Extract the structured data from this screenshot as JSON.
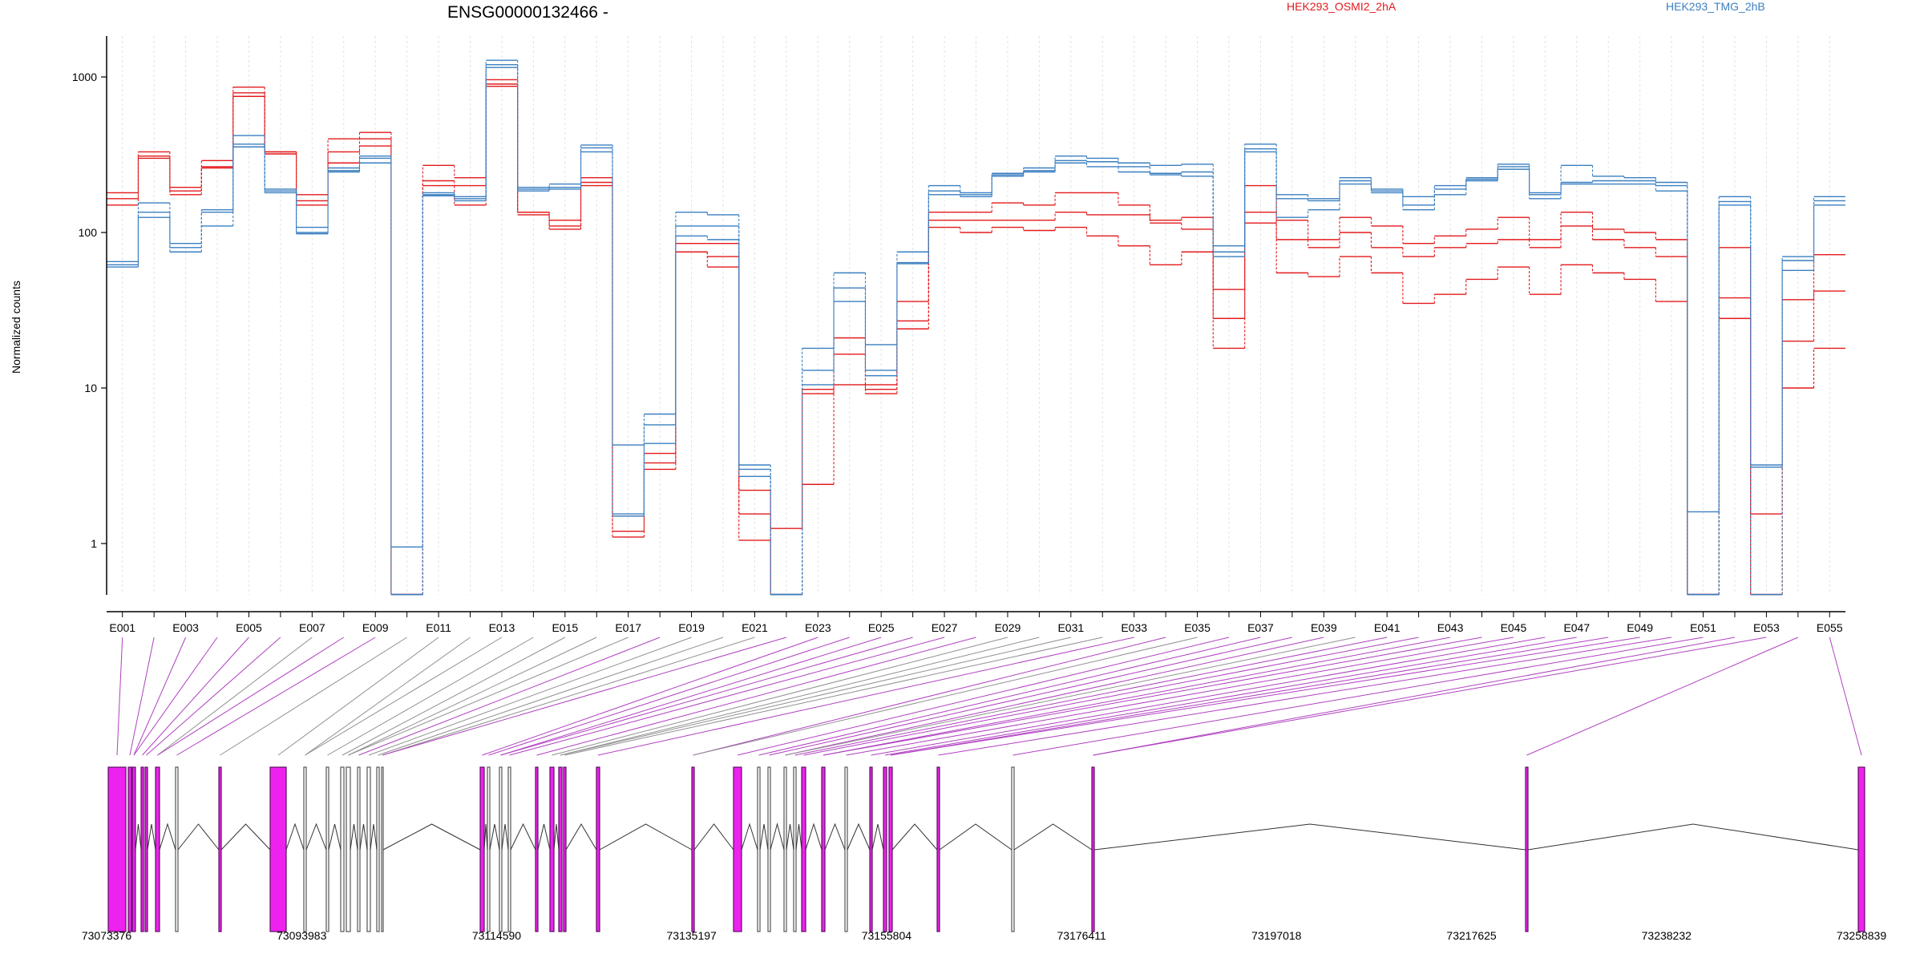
{
  "chart_data": {
    "type": "line",
    "title": "ENSG00000132466 -",
    "xlabel": "",
    "ylabel": "Normalized counts",
    "yscale": "log",
    "ylim": [
      0.45,
      1800
    ],
    "yticks": [
      1,
      10,
      100,
      1000
    ],
    "ytick_labels": [
      "1",
      "10",
      "100",
      "1000"
    ],
    "grid": "vertical dashed at each exon",
    "legend_placement": "top",
    "colors": {
      "HEK293_OSMI2_2hA": "#e31a1c",
      "HEK293_TMG_2hB": "#3a7fc1",
      "exon_highlight": "#ee22ee",
      "exon_plain": "#555555",
      "connector_highlight": "#b040c0",
      "connector_plain": "#909090"
    },
    "categories": [
      "E001",
      "E002",
      "E003",
      "E004",
      "E005",
      "E006",
      "E007",
      "E008",
      "E009",
      "E010",
      "E011",
      "E012",
      "E013",
      "E014",
      "E015",
      "E016",
      "E017",
      "E018",
      "E019",
      "E020",
      "E021",
      "E022",
      "E023",
      "E024",
      "E025",
      "E026",
      "E027",
      "E028",
      "E029",
      "E030",
      "E031",
      "E032",
      "E033",
      "E034",
      "E035",
      "E036",
      "E037",
      "E038",
      "E039",
      "E040",
      "E041",
      "E042",
      "E043",
      "E044",
      "E045",
      "E046",
      "E047",
      "E048",
      "E049",
      "E050",
      "E051",
      "E052",
      "E053",
      "E054",
      "E055"
    ],
    "tick_labels": [
      "E001",
      "E003",
      "E005",
      "E007",
      "E009",
      "E011",
      "E013",
      "E015",
      "E017",
      "E019",
      "E021",
      "E023",
      "E025",
      "E027",
      "E029",
      "E031",
      "E033",
      "E035",
      "E037",
      "E039",
      "E041",
      "E043",
      "E045",
      "E047",
      "E049",
      "E051",
      "E053",
      "E055"
    ],
    "series": [
      {
        "name": "HEK293_OSMI2_2hA",
        "color": "#e31a1c",
        "values": [
          180,
          330,
          195,
          290,
          860,
          330,
          175,
          400,
          440,
          0.47,
          270,
          225,
          960,
          135,
          120,
          225,
          1.5,
          3.8,
          75,
          70,
          2.2,
          1.25,
          9.8,
          21,
          10.5,
          36,
          135,
          135,
          155,
          150,
          180,
          180,
          150,
          120,
          125,
          43,
          200,
          120,
          90,
          125,
          110,
          85,
          95,
          105,
          125,
          90,
          135,
          105,
          100,
          90,
          0.47,
          80,
          0.47,
          37,
          72
        ]
      },
      {
        "name": "HEK293_OSMI2_2hA",
        "color": "#e31a1c",
        "values": [
          165,
          310,
          185,
          265,
          790,
          330,
          160,
          330,
          400,
          0.47,
          215,
          200,
          900,
          135,
          110,
          210,
          1.2,
          3.3,
          85,
          85,
          1.55,
          0.47,
          9.2,
          16.5,
          9.8,
          27,
          120,
          120,
          120,
          120,
          135,
          130,
          130,
          115,
          105,
          28,
          135,
          90,
          80,
          100,
          80,
          70,
          80,
          85,
          90,
          80,
          110,
          90,
          80,
          70,
          0.47,
          38,
          1.55,
          20,
          42
        ]
      },
      {
        "name": "HEK293_OSMI2_2hA",
        "color": "#e31a1c",
        "values": [
          150,
          300,
          175,
          260,
          750,
          320,
          150,
          280,
          360,
          0.47,
          200,
          150,
          870,
          130,
          105,
          200,
          1.1,
          3.0,
          75,
          60,
          1.05,
          0.47,
          2.4,
          10.5,
          9.2,
          24,
          108,
          100,
          108,
          103,
          108,
          95,
          82,
          62,
          75,
          18,
          115,
          55,
          52,
          70,
          55,
          35,
          40,
          50,
          60,
          40,
          62,
          55,
          50,
          36,
          0.47,
          28,
          0.47,
          10,
          18
        ]
      },
      {
        "name": "HEK293_TMG_2hB",
        "color": "#3a7fc1",
        "values": [
          65,
          155,
          85,
          140,
          420,
          190,
          108,
          260,
          310,
          0.95,
          180,
          170,
          1280,
          195,
          205,
          365,
          4.3,
          6.8,
          135,
          130,
          3.2,
          0.47,
          18,
          55,
          19,
          75,
          200,
          180,
          240,
          260,
          310,
          300,
          280,
          270,
          275,
          82,
          370,
          175,
          165,
          225,
          190,
          170,
          200,
          225,
          275,
          180,
          270,
          230,
          225,
          210,
          1.6,
          170,
          3.2,
          70,
          170
        ]
      },
      {
        "name": "HEK293_TMG_2hB",
        "color": "#3a7fc1",
        "values": [
          62,
          135,
          80,
          135,
          370,
          185,
          100,
          250,
          300,
          0.47,
          175,
          165,
          1200,
          190,
          195,
          350,
          1.55,
          5.8,
          110,
          110,
          3.0,
          0.47,
          13,
          44,
          13,
          64,
          185,
          175,
          235,
          250,
          290,
          285,
          265,
          240,
          245,
          75,
          345,
          165,
          160,
          215,
          185,
          150,
          190,
          220,
          265,
          175,
          210,
          215,
          215,
          200,
          0.47,
          158,
          3.1,
          66,
          160
        ]
      },
      {
        "name": "HEK293_TMG_2hB",
        "color": "#3a7fc1",
        "values": [
          60,
          125,
          75,
          110,
          355,
          180,
          98,
          245,
          280,
          0.47,
          172,
          160,
          1150,
          185,
          190,
          330,
          1.5,
          4.4,
          95,
          90,
          2.7,
          0.47,
          10.5,
          36,
          12,
          63,
          175,
          170,
          230,
          245,
          280,
          265,
          245,
          235,
          230,
          70,
          330,
          125,
          140,
          205,
          180,
          140,
          175,
          215,
          255,
          165,
          205,
          205,
          205,
          185,
          0.47,
          150,
          0.47,
          57,
          150
        ]
      }
    ],
    "gene_model": {
      "coordinate_labels": [
        "73073376",
        "73093983",
        "73114590",
        "73135197",
        "73155804",
        "73176411",
        "73197018",
        "73217625",
        "73238232",
        "73258839"
      ]
    }
  }
}
